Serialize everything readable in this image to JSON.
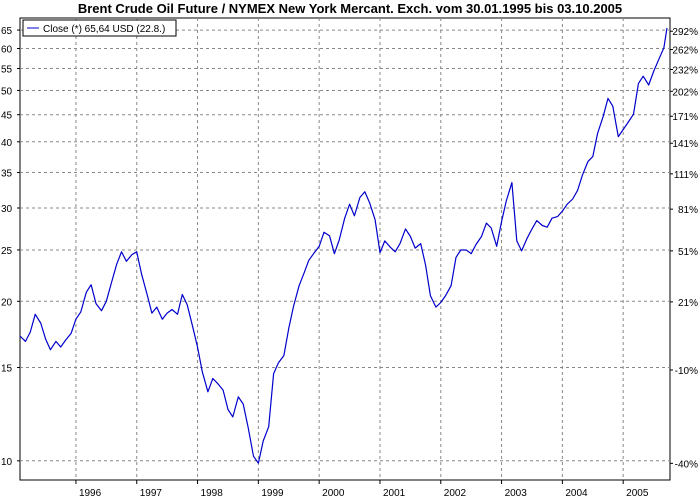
{
  "chart_data": {
    "type": "line",
    "title": "Brent Crude Oil Future / NYMEX New York Mercant. Exch. vom 30.01.1995 bis 03.10.2005",
    "y_scale": "log",
    "ylim": [
      9.2,
      68.5
    ],
    "y_ticks_left": [
      "10",
      "15",
      "20",
      "25",
      "30",
      "35",
      "40",
      "45",
      "50",
      "55",
      "60",
      "65"
    ],
    "y_ticks_right": [
      {
        "label": "-40%",
        "value": 9.89
      },
      {
        "label": "-10%",
        "value": 14.84
      },
      {
        "label": "21%",
        "value": 19.95
      },
      {
        "label": "51%",
        "value": 24.9
      },
      {
        "label": "81%",
        "value": 29.85
      },
      {
        "label": "111%",
        "value": 34.8
      },
      {
        "label": "141%",
        "value": 39.75
      },
      {
        "label": "171%",
        "value": 44.7
      },
      {
        "label": "202%",
        "value": 49.82
      },
      {
        "label": "232%",
        "value": 54.77
      },
      {
        "label": "262%",
        "value": 59.72
      },
      {
        "label": "292%",
        "value": 64.67
      }
    ],
    "xlim": [
      1995.08,
      2005.77
    ],
    "x_ticks": [
      {
        "label": "1996",
        "value": 1996.0
      },
      {
        "label": "1997",
        "value": 1997.0
      },
      {
        "label": "1998",
        "value": 1998.0
      },
      {
        "label": "1999",
        "value": 1999.0
      },
      {
        "label": "2000",
        "value": 2000.0
      },
      {
        "label": "2001",
        "value": 2001.0
      },
      {
        "label": "2002",
        "value": 2002.0
      },
      {
        "label": "2003",
        "value": 2003.0
      },
      {
        "label": "2004",
        "value": 2004.0
      },
      {
        "label": "2005",
        "value": 2005.0
      }
    ],
    "grid": true,
    "legend_position": "top-left",
    "series": [
      {
        "name": "Close (*) 65,64 USD (22.8.)",
        "color": "#0000cc",
        "x": [
          1995.08,
          1995.17,
          1995.25,
          1995.33,
          1995.42,
          1995.5,
          1995.58,
          1995.67,
          1995.75,
          1995.83,
          1995.92,
          1996.0,
          1996.08,
          1996.17,
          1996.25,
          1996.33,
          1996.42,
          1996.5,
          1996.58,
          1996.67,
          1996.75,
          1996.83,
          1996.92,
          1997.0,
          1997.08,
          1997.17,
          1997.25,
          1997.33,
          1997.42,
          1997.5,
          1997.58,
          1997.67,
          1997.75,
          1997.83,
          1997.92,
          1998.0,
          1998.08,
          1998.17,
          1998.25,
          1998.33,
          1998.42,
          1998.5,
          1998.58,
          1998.67,
          1998.75,
          1998.83,
          1998.92,
          1999.0,
          1999.08,
          1999.17,
          1999.25,
          1999.33,
          1999.42,
          1999.5,
          1999.58,
          1999.67,
          1999.75,
          1999.83,
          1999.92,
          2000.0,
          2000.08,
          2000.17,
          2000.25,
          2000.33,
          2000.42,
          2000.5,
          2000.58,
          2000.67,
          2000.75,
          2000.83,
          2000.92,
          2001.0,
          2001.08,
          2001.17,
          2001.25,
          2001.33,
          2001.42,
          2001.5,
          2001.58,
          2001.67,
          2001.75,
          2001.83,
          2001.92,
          2002.0,
          2002.08,
          2002.17,
          2002.25,
          2002.33,
          2002.42,
          2002.5,
          2002.58,
          2002.67,
          2002.75,
          2002.83,
          2002.92,
          2003.0,
          2003.08,
          2003.17,
          2003.25,
          2003.33,
          2003.42,
          2003.5,
          2003.58,
          2003.67,
          2003.75,
          2003.83,
          2003.92,
          2004.0,
          2004.08,
          2004.17,
          2004.25,
          2004.33,
          2004.42,
          2004.5,
          2004.58,
          2004.67,
          2004.75,
          2004.83,
          2004.92,
          2005.0,
          2005.08,
          2005.17,
          2005.25,
          2005.33,
          2005.42,
          2005.5,
          2005.58,
          2005.67,
          2005.72
        ],
        "y": [
          17.2,
          16.8,
          17.5,
          18.9,
          18.2,
          17.0,
          16.2,
          16.8,
          16.4,
          16.9,
          17.4,
          18.5,
          19.1,
          20.8,
          21.5,
          19.8,
          19.2,
          20.0,
          21.6,
          23.5,
          24.8,
          23.8,
          24.5,
          24.8,
          22.5,
          20.6,
          19.0,
          19.5,
          18.5,
          19.0,
          19.3,
          18.9,
          20.6,
          19.7,
          17.9,
          16.4,
          14.7,
          13.5,
          14.3,
          14.0,
          13.6,
          12.5,
          12.1,
          13.2,
          12.8,
          11.6,
          10.2,
          9.9,
          10.9,
          11.6,
          14.6,
          15.3,
          15.8,
          17.8,
          19.6,
          21.4,
          22.6,
          23.9,
          24.7,
          25.4,
          27.0,
          26.6,
          24.6,
          26.1,
          28.7,
          30.5,
          29.0,
          31.4,
          32.2,
          30.7,
          28.5,
          24.7,
          26.0,
          25.3,
          24.8,
          25.7,
          27.4,
          26.5,
          25.2,
          25.7,
          23.4,
          20.5,
          19.5,
          19.9,
          20.5,
          21.4,
          24.2,
          25.0,
          25.0,
          24.6,
          25.6,
          26.5,
          28.1,
          27.5,
          25.4,
          28.3,
          31.0,
          33.5,
          26.0,
          24.9,
          26.3,
          27.4,
          28.4,
          27.8,
          27.6,
          28.7,
          28.9,
          29.6,
          30.5,
          31.2,
          32.4,
          34.6,
          36.7,
          37.5,
          41.5,
          44.6,
          48.3,
          46.7,
          40.9,
          42.2,
          43.5,
          45.1,
          51.5,
          53.2,
          51.2,
          54.3,
          57.0,
          60.2,
          65.6
        ]
      }
    ]
  }
}
